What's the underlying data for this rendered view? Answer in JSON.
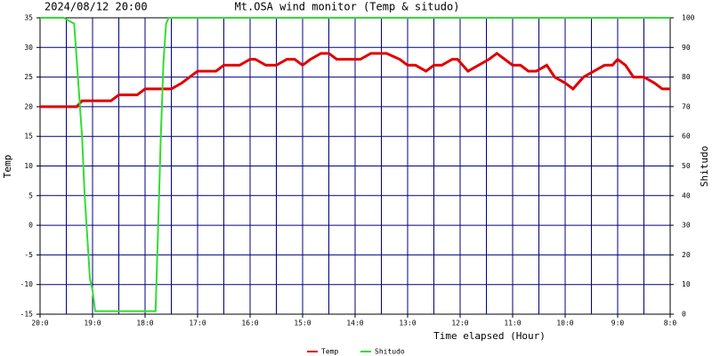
{
  "chart_data": {
    "type": "line",
    "title": "Mt.OSA wind monitor (Temp & situdo)",
    "subtitle": "2024/08/12 20:00",
    "xlabel": "Time elapsed (Hour)",
    "ylabel": "Temp",
    "y2label": "Shitudo",
    "xlim": [
      0,
      12
    ],
    "xticks": [
      {
        "value": 0,
        "label": "20:0"
      },
      {
        "value": 1,
        "label": "19:0"
      },
      {
        "value": 2,
        "label": "18:0"
      },
      {
        "value": 3,
        "label": "17:0"
      },
      {
        "value": 4,
        "label": "16:0"
      },
      {
        "value": 5,
        "label": "15:0"
      },
      {
        "value": 6,
        "label": "14:0"
      },
      {
        "value": 7,
        "label": "13:0"
      },
      {
        "value": 8,
        "label": "12:0"
      },
      {
        "value": 9,
        "label": "11:0"
      },
      {
        "value": 10,
        "label": "10:0"
      },
      {
        "value": 11,
        "label": "9:0"
      },
      {
        "value": 12,
        "label": "8:0"
      }
    ],
    "xminorticks": [
      0.5,
      1.5,
      2.5,
      3.5,
      4.5,
      5.5,
      6.5,
      7.5,
      8.5,
      9.5,
      10.5,
      11.5
    ],
    "ylim": [
      -15,
      35
    ],
    "yticks": [
      -15,
      -10,
      -5,
      0,
      5,
      10,
      15,
      20,
      25,
      30,
      35
    ],
    "y2lim": [
      0,
      100
    ],
    "y2ticks": [
      0,
      10,
      20,
      30,
      40,
      50,
      60,
      70,
      80,
      90,
      100
    ],
    "grid": true,
    "grid_color": "#000080",
    "legend": "bottom",
    "series": [
      {
        "name": "Temp",
        "color": "#e00000",
        "x": [
          0,
          0.7,
          0.8,
          1.35,
          1.5,
          1.85,
          2.0,
          2.5,
          2.7,
          2.85,
          3.0,
          3.35,
          3.5,
          3.8,
          4.0,
          4.1,
          4.3,
          4.5,
          4.7,
          4.85,
          5.0,
          5.15,
          5.35,
          5.5,
          5.65,
          6.1,
          6.3,
          6.6,
          6.85,
          7.0,
          7.15,
          7.35,
          7.5,
          7.65,
          7.85,
          7.95,
          8.15,
          8.35,
          8.55,
          8.7,
          8.85,
          9.0,
          9.15,
          9.3,
          9.45,
          9.65,
          9.8,
          10.0,
          10.15,
          10.35,
          10.55,
          10.75,
          10.9,
          11.0,
          11.15,
          11.3,
          11.5,
          11.7,
          11.85,
          12.0
        ],
        "values": [
          20,
          20,
          21,
          21,
          22,
          22,
          23,
          23,
          24,
          25,
          26,
          26,
          27,
          27,
          28,
          28,
          27,
          27,
          28,
          28,
          27,
          28,
          29,
          29,
          28,
          28,
          29,
          29,
          28,
          27,
          27,
          26,
          27,
          27,
          28,
          28,
          26,
          27,
          28,
          29,
          28,
          27,
          27,
          26,
          26,
          27,
          25,
          24,
          23,
          25,
          26,
          27,
          27,
          28,
          27,
          25,
          25,
          24,
          23,
          23
        ]
      },
      {
        "name": "Shitudo",
        "color": "#33dd33",
        "axis": "y2",
        "x": [
          0,
          0.45,
          0.65,
          0.8,
          0.85,
          0.95,
          1.0,
          1.05,
          2.2,
          2.25,
          2.3,
          2.35,
          2.4,
          2.45,
          12
        ],
        "values": [
          100,
          100,
          98,
          60,
          40,
          12,
          8,
          1,
          1,
          30,
          60,
          85,
          98,
          100,
          100
        ]
      }
    ]
  }
}
